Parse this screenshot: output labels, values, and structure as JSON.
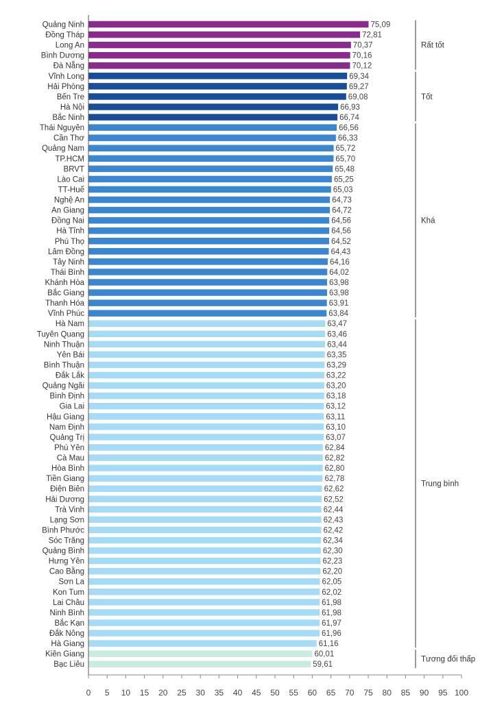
{
  "chart_data": {
    "type": "bar",
    "orientation": "horizontal",
    "xlim": [
      0,
      100
    ],
    "xticks": [
      0,
      5,
      10,
      15,
      20,
      25,
      30,
      35,
      40,
      45,
      50,
      55,
      60,
      65,
      70,
      75,
      80,
      85,
      90,
      95,
      100
    ],
    "grid": false,
    "bars": [
      {
        "label": "Quảng Ninh",
        "value": 75.09,
        "value_text": "75,09",
        "group": 0
      },
      {
        "label": "Đồng Tháp",
        "value": 72.81,
        "value_text": "72,81",
        "group": 0
      },
      {
        "label": "Long An",
        "value": 70.37,
        "value_text": "70,37",
        "group": 0
      },
      {
        "label": "Bình Dương",
        "value": 70.16,
        "value_text": "70,16",
        "group": 0
      },
      {
        "label": "Đà Nẵng",
        "value": 70.12,
        "value_text": "70,12",
        "group": 0
      },
      {
        "label": "Vĩnh Long",
        "value": 69.34,
        "value_text": "69,34",
        "group": 1
      },
      {
        "label": "Hải Phòng",
        "value": 69.27,
        "value_text": "69,27",
        "group": 1
      },
      {
        "label": "Bến Tre",
        "value": 69.08,
        "value_text": "69,08",
        "group": 1
      },
      {
        "label": "Hà Nội",
        "value": 66.93,
        "value_text": "66,93",
        "group": 1
      },
      {
        "label": "Bắc Ninh",
        "value": 66.74,
        "value_text": "66,74",
        "group": 1
      },
      {
        "label": "Thái Nguyên",
        "value": 66.56,
        "value_text": "66,56",
        "group": 2
      },
      {
        "label": "Cần Thơ",
        "value": 66.33,
        "value_text": "66,33",
        "group": 2
      },
      {
        "label": "Quảng Nam",
        "value": 65.72,
        "value_text": "65,72",
        "group": 2
      },
      {
        "label": "TP.HCM",
        "value": 65.7,
        "value_text": "65,70",
        "group": 2
      },
      {
        "label": "BRVT",
        "value": 65.48,
        "value_text": "65,48",
        "group": 2
      },
      {
        "label": "Lào Cai",
        "value": 65.25,
        "value_text": "65,25",
        "group": 2
      },
      {
        "label": "TT-Huế",
        "value": 65.03,
        "value_text": "65,03",
        "group": 2
      },
      {
        "label": "Nghệ An",
        "value": 64.73,
        "value_text": "64,73",
        "group": 2
      },
      {
        "label": "An Giang",
        "value": 64.72,
        "value_text": "64,72",
        "group": 2
      },
      {
        "label": "Đồng Nai",
        "value": 64.56,
        "value_text": "64,56",
        "group": 2
      },
      {
        "label": "Hà Tĩnh",
        "value": 64.56,
        "value_text": "64,56",
        "group": 2
      },
      {
        "label": "Phú Thọ",
        "value": 64.52,
        "value_text": "64,52",
        "group": 2
      },
      {
        "label": "Lâm Đồng",
        "value": 64.43,
        "value_text": "64,43",
        "group": 2
      },
      {
        "label": "Tây Ninh",
        "value": 64.16,
        "value_text": "64,16",
        "group": 2
      },
      {
        "label": "Thái Bình",
        "value": 64.02,
        "value_text": "64,02",
        "group": 2
      },
      {
        "label": "Khánh Hòa",
        "value": 63.98,
        "value_text": "63,98",
        "group": 2
      },
      {
        "label": "Bắc Giang",
        "value": 63.98,
        "value_text": "63,98",
        "group": 2
      },
      {
        "label": "Thanh Hóa",
        "value": 63.91,
        "value_text": "63,91",
        "group": 2
      },
      {
        "label": "Vĩnh Phúc",
        "value": 63.84,
        "value_text": "63,84",
        "group": 2
      },
      {
        "label": "Hà Nam",
        "value": 63.47,
        "value_text": "63,47",
        "group": 3
      },
      {
        "label": "Tuyên Quang",
        "value": 63.46,
        "value_text": "63,46",
        "group": 3
      },
      {
        "label": "Ninh Thuận",
        "value": 63.44,
        "value_text": "63,44",
        "group": 3
      },
      {
        "label": "Yên Bái",
        "value": 63.35,
        "value_text": "63,35",
        "group": 3
      },
      {
        "label": "Bình Thuận",
        "value": 63.29,
        "value_text": "63,29",
        "group": 3
      },
      {
        "label": "Đắk Lắk",
        "value": 63.22,
        "value_text": "63,22",
        "group": 3
      },
      {
        "label": "Quảng Ngãi",
        "value": 63.2,
        "value_text": "63,20",
        "group": 3
      },
      {
        "label": "Bình Định",
        "value": 63.18,
        "value_text": "63,18",
        "group": 3
      },
      {
        "label": "Gia Lai",
        "value": 63.12,
        "value_text": "63,12",
        "group": 3
      },
      {
        "label": "Hậu Giang",
        "value": 63.11,
        "value_text": "63,11",
        "group": 3
      },
      {
        "label": "Nam Định",
        "value": 63.1,
        "value_text": "63,10",
        "group": 3
      },
      {
        "label": "Quảng Trị",
        "value": 63.07,
        "value_text": "63,07",
        "group": 3
      },
      {
        "label": "Phú Yên",
        "value": 62.84,
        "value_text": "62,84",
        "group": 3
      },
      {
        "label": "Cà Mau",
        "value": 62.82,
        "value_text": "62,82",
        "group": 3
      },
      {
        "label": "Hòa Bình",
        "value": 62.8,
        "value_text": "62,80",
        "group": 3
      },
      {
        "label": "Tiền Giang",
        "value": 62.78,
        "value_text": "62,78",
        "group": 3
      },
      {
        "label": "Điện Biên",
        "value": 62.62,
        "value_text": "62,62",
        "group": 3
      },
      {
        "label": "Hải Dương",
        "value": 62.52,
        "value_text": "62,52",
        "group": 3
      },
      {
        "label": "Trà Vinh",
        "value": 62.44,
        "value_text": "62,44",
        "group": 3
      },
      {
        "label": "Lạng Sơn",
        "value": 62.43,
        "value_text": "62,43",
        "group": 3
      },
      {
        "label": "Bình Phước",
        "value": 62.42,
        "value_text": "62,42",
        "group": 3
      },
      {
        "label": "Sóc Trăng",
        "value": 62.34,
        "value_text": "62,34",
        "group": 3
      },
      {
        "label": "Quảng Bình",
        "value": 62.3,
        "value_text": "62,30",
        "group": 3
      },
      {
        "label": "Hưng Yên",
        "value": 62.23,
        "value_text": "62,23",
        "group": 3
      },
      {
        "label": "Cao Bằng",
        "value": 62.2,
        "value_text": "62,20",
        "group": 3
      },
      {
        "label": "Sơn La",
        "value": 62.05,
        "value_text": "62,05",
        "group": 3
      },
      {
        "label": "Kon Tum",
        "value": 62.02,
        "value_text": "62,02",
        "group": 3
      },
      {
        "label": "Lai Châu",
        "value": 61.98,
        "value_text": "61,98",
        "group": 3
      },
      {
        "label": "Ninh Bình",
        "value": 61.98,
        "value_text": "61,98",
        "group": 3
      },
      {
        "label": "Bắc Kạn",
        "value": 61.97,
        "value_text": "61,97",
        "group": 3
      },
      {
        "label": "Đắk Nông",
        "value": 61.96,
        "value_text": "61,96",
        "group": 3
      },
      {
        "label": "Hà Giang",
        "value": 61.16,
        "value_text": "61,16",
        "group": 3
      },
      {
        "label": "Kiên Giang",
        "value": 60.01,
        "value_text": "60,01",
        "group": 4
      },
      {
        "label": "Bạc Liêu",
        "value": 59.61,
        "value_text": "59,61",
        "group": 4
      }
    ],
    "groups": [
      {
        "name": "Rất tốt",
        "color": "#8a2a8c"
      },
      {
        "name": "Tốt",
        "color": "#1a4d99"
      },
      {
        "name": "Khá",
        "color": "#3a86d0"
      },
      {
        "name": "Trung bình",
        "color": "#a6dbf5"
      },
      {
        "name": "Tương đối thấp",
        "color": "#c9ece0"
      }
    ]
  }
}
